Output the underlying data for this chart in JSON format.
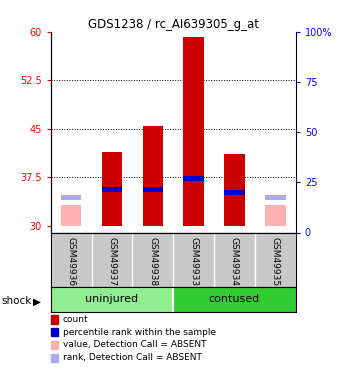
{
  "title": "GDS1238 / rc_AI639305_g_at",
  "samples": [
    "GSM49936",
    "GSM49937",
    "GSM49938",
    "GSM49933",
    "GSM49934",
    "GSM49935"
  ],
  "group_labels": [
    "uninjured",
    "contused"
  ],
  "group_factor": "shock",
  "ylim_left": [
    29,
    60
  ],
  "ylim_right": [
    0,
    100
  ],
  "yticks_left": [
    30,
    37.5,
    45,
    52.5,
    60
  ],
  "yticks_right": [
    0,
    25,
    50,
    75,
    100
  ],
  "ytick_labels_right": [
    "0",
    "25",
    "50",
    "75",
    "100%"
  ],
  "ytick_labels_left": [
    "30",
    "37.5",
    "45",
    "52.5",
    "60"
  ],
  "bar_width": 0.5,
  "red_color": "#CC0000",
  "pink_color": "#FFB0B0",
  "blue_color": "#0000CC",
  "light_blue_color": "#AAAAEE",
  "absent_bars": [
    0,
    5
  ],
  "red_bar_values": [
    33.3,
    41.5,
    45.5,
    59.2,
    41.2,
    33.3
  ],
  "blue_bar_bottom": [
    34.0,
    35.3,
    35.2,
    37.0,
    34.8,
    34.0
  ],
  "blue_bar_heights": [
    0.8,
    0.8,
    0.8,
    0.8,
    0.8,
    0.8
  ],
  "bar_base": 30.0,
  "light_green": "#90EE90",
  "dark_green": "#32CD32",
  "label_area_color": "#C8C8C8",
  "legend_items": [
    {
      "color": "#CC0000",
      "label": "count"
    },
    {
      "color": "#0000CC",
      "label": "percentile rank within the sample"
    },
    {
      "color": "#FFB0B0",
      "label": "value, Detection Call = ABSENT"
    },
    {
      "color": "#AAAAEE",
      "label": "rank, Detection Call = ABSENT"
    }
  ]
}
